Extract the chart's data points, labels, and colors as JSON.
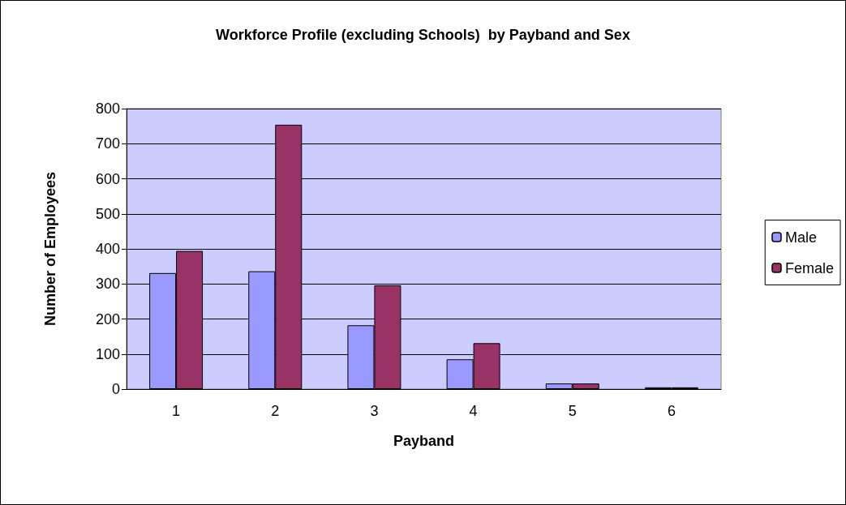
{
  "chart_data": {
    "type": "bar",
    "title": "Workforce Profile (excluding Schools)  by Payband and Sex",
    "xlabel": "Payband",
    "ylabel": "Number of Employees",
    "categories": [
      "1",
      "2",
      "3",
      "4",
      "5",
      "6"
    ],
    "series": [
      {
        "name": "Male",
        "color": "#9999ff",
        "values": [
          331,
          336,
          182,
          85,
          16,
          5
        ]
      },
      {
        "name": "Female",
        "color": "#993366",
        "values": [
          394,
          754,
          296,
          131,
          16,
          5
        ]
      }
    ],
    "ylim": [
      0,
      800
    ],
    "yticks": [
      0,
      100,
      200,
      300,
      400,
      500,
      600,
      700,
      800
    ],
    "grid": "y",
    "legend": "right"
  }
}
